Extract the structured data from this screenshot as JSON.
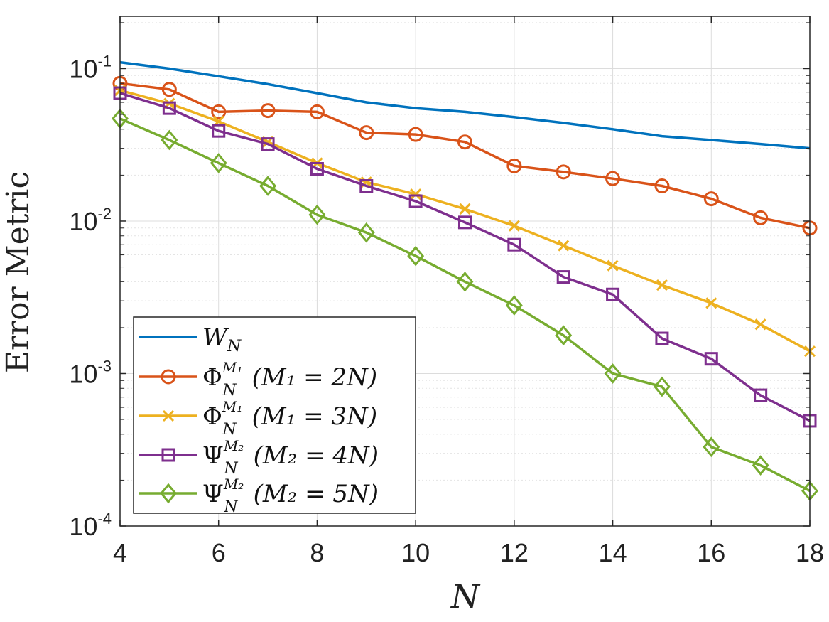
{
  "chart_data": {
    "type": "line",
    "xlabel": "N",
    "ylabel": "Error Metric",
    "xlim": [
      4,
      18
    ],
    "ylim": [
      0.0001,
      0.22
    ],
    "yscale": "log",
    "grid": true,
    "legend_position": "bottom-left",
    "x_ticks": [
      "4",
      "6",
      "8",
      "10",
      "12",
      "14",
      "16",
      "18"
    ],
    "y_ticks": [
      {
        "base": "10",
        "exp": "-4",
        "value": 0.0001
      },
      {
        "base": "10",
        "exp": "-3",
        "value": 0.001
      },
      {
        "base": "10",
        "exp": "-2",
        "value": 0.01
      },
      {
        "base": "10",
        "exp": "-1",
        "value": 0.1
      }
    ],
    "x": [
      4,
      5,
      6,
      7,
      8,
      9,
      10,
      11,
      12,
      13,
      14,
      15,
      16,
      17,
      18
    ],
    "series": [
      {
        "label_main": "W",
        "label_sub": "N",
        "label_sup": "",
        "label_paren": "",
        "color": "#0072BD",
        "marker": "none",
        "values": [
          0.11,
          0.1,
          0.089,
          0.079,
          0.069,
          0.06,
          0.055,
          0.052,
          0.048,
          0.044,
          0.04,
          0.036,
          0.034,
          0.032,
          0.03
        ]
      },
      {
        "label_main": "Φ",
        "label_sub": "N",
        "label_sup": "M₁",
        "label_paren": "(M₁ = 2N)",
        "color": "#D95319",
        "marker": "circle",
        "values": [
          0.08,
          0.073,
          0.052,
          0.053,
          0.052,
          0.038,
          0.037,
          0.033,
          0.023,
          0.021,
          0.019,
          0.017,
          0.014,
          0.0105,
          0.009
        ]
      },
      {
        "label_main": "Φ",
        "label_sub": "N",
        "label_sup": "M₁",
        "label_paren": "(M₁ = 3N)",
        "color": "#EDB120",
        "marker": "x",
        "values": [
          0.072,
          0.059,
          0.045,
          0.033,
          0.024,
          0.018,
          0.015,
          0.012,
          0.0093,
          0.0069,
          0.0051,
          0.0038,
          0.0029,
          0.0021,
          0.0014
        ]
      },
      {
        "label_main": "Ψ",
        "label_sub": "N",
        "label_sup": "M₂",
        "label_paren": "(M₂ = 4N)",
        "color": "#7E2F8E",
        "marker": "square",
        "values": [
          0.069,
          0.055,
          0.039,
          0.032,
          0.022,
          0.017,
          0.0135,
          0.0098,
          0.007,
          0.0043,
          0.0033,
          0.0017,
          0.00125,
          0.00072,
          0.00049
        ]
      },
      {
        "label_main": "Ψ",
        "label_sub": "N",
        "label_sup": "M₂",
        "label_paren": "(M₂ = 5N)",
        "color": "#77AC30",
        "marker": "diamond",
        "values": [
          0.047,
          0.034,
          0.024,
          0.017,
          0.011,
          0.0084,
          0.0059,
          0.004,
          0.0028,
          0.00178,
          0.001,
          0.00082,
          0.00033,
          0.00025,
          0.00017
        ]
      }
    ]
  }
}
